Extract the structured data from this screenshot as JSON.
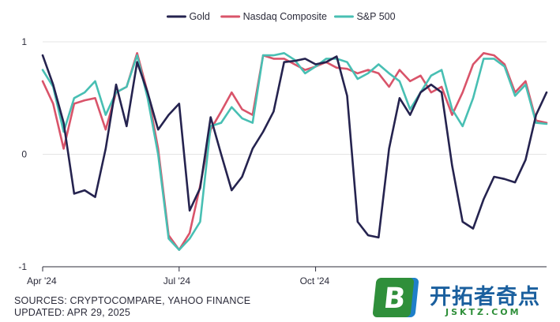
{
  "chart_data": {
    "type": "line",
    "title": "",
    "xlabel": "",
    "ylabel": "",
    "ylim": [
      -1,
      1
    ],
    "yticks": [
      1,
      0,
      -1
    ],
    "xticks": [
      {
        "label": "Apr '24",
        "index": 0
      },
      {
        "label": "Jul '24",
        "index": 13
      },
      {
        "label": "Oct '24",
        "index": 26
      }
    ],
    "legend_position": "top-center",
    "grid": "horizontal",
    "x_period": "Apr 2024 – Apr 2025 (weekly)",
    "series": [
      {
        "name": "Gold",
        "color": "#25234f",
        "values": [
          0.88,
          0.62,
          0.28,
          -0.35,
          -0.32,
          -0.38,
          0.05,
          0.62,
          0.25,
          0.82,
          0.55,
          0.22,
          0.35,
          0.45,
          -0.5,
          -0.3,
          0.33,
          0.0,
          -0.32,
          -0.2,
          0.05,
          0.2,
          0.38,
          0.82,
          0.83,
          0.85,
          0.8,
          0.82,
          0.87,
          0.52,
          -0.6,
          -0.72,
          -0.74,
          0.05,
          0.5,
          0.35,
          0.55,
          0.62,
          0.55,
          -0.1,
          -0.6,
          -0.66,
          -0.4,
          -0.2,
          -0.22,
          -0.25,
          -0.05,
          0.35,
          0.55
        ]
      },
      {
        "name": "Nasdaq Composite",
        "color": "#d9546a",
        "values": [
          0.65,
          0.45,
          0.05,
          0.45,
          0.48,
          0.5,
          0.22,
          0.55,
          0.6,
          0.9,
          0.55,
          0.05,
          -0.72,
          -0.85,
          -0.7,
          -0.28,
          0.22,
          0.38,
          0.55,
          0.4,
          0.35,
          0.88,
          0.85,
          0.85,
          0.8,
          0.75,
          0.78,
          0.82,
          0.77,
          0.76,
          0.72,
          0.75,
          0.72,
          0.6,
          0.75,
          0.65,
          0.7,
          0.55,
          0.6,
          0.35,
          0.55,
          0.8,
          0.9,
          0.88,
          0.8,
          0.55,
          0.65,
          0.3,
          0.28
        ]
      },
      {
        "name": "S&P 500",
        "color": "#48bfb3",
        "values": [
          0.75,
          0.6,
          0.2,
          0.5,
          0.55,
          0.65,
          0.35,
          0.55,
          0.6,
          0.88,
          0.5,
          0.0,
          -0.75,
          -0.85,
          -0.75,
          -0.6,
          0.25,
          0.28,
          0.42,
          0.32,
          0.28,
          0.88,
          0.88,
          0.9,
          0.84,
          0.72,
          0.78,
          0.85,
          0.85,
          0.82,
          0.67,
          0.72,
          0.8,
          0.72,
          0.65,
          0.4,
          0.55,
          0.7,
          0.75,
          0.4,
          0.25,
          0.5,
          0.85,
          0.85,
          0.78,
          0.52,
          0.62,
          0.28,
          0.27
        ]
      }
    ]
  },
  "footer": {
    "sources": "SOURCES: CRYPTOCOMPARE, YAHOO FINANCE",
    "updated": "UPDATED: APR 29, 2025"
  },
  "watermark": {
    "logo_letter": "B",
    "name": "开拓者奇点",
    "url": "JSKTZ.COM"
  }
}
